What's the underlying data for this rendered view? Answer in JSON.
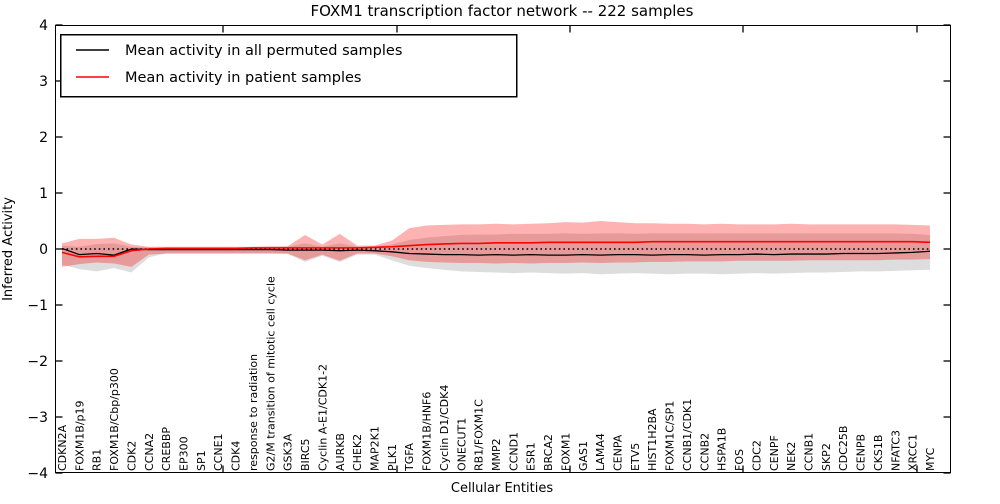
{
  "chart_data": {
    "type": "line",
    "title": "FOXM1 transcription factor network -- 222 samples",
    "xlabel": "Cellular Entities",
    "ylabel": "Inferred Activity",
    "ylim": [
      -4,
      4
    ],
    "yticks": [
      4,
      3,
      2,
      1,
      0,
      -1,
      -2,
      -3,
      -4
    ],
    "grid": false,
    "legend_position": "upper left",
    "legend": [
      {
        "label": "Mean activity in all permuted samples",
        "color": "#000000"
      },
      {
        "label": "Mean activity in patient samples",
        "color": "#ff0000"
      }
    ],
    "zero_reference_line": {
      "value": 0,
      "style": "dotted",
      "color": "#000000"
    },
    "categories": [
      "CDKN2A",
      "FOXM1B/p19",
      "RB1",
      "FOXM1B/Cbp/p300",
      "CDK2",
      "CCNA2",
      "CREBBP",
      "EP300",
      "SP1",
      "CCNE1",
      "CDK4",
      "response to radiation",
      "G2/M transition of mitotic cell cycle",
      "GSK3A",
      "BIRC5",
      "Cyclin A-E1/CDK1-2",
      "AURKB",
      "CHEK2",
      "MAP2K1",
      "PLK1",
      "TGFA",
      "FOXM1B/HNF6",
      "Cyclin D1/CDK4",
      "ONECUT1",
      "RB1/FOXM1C",
      "MMP2",
      "CCND1",
      "ESR1",
      "BRCA2",
      "FOXM1",
      "GAS1",
      "LAMA4",
      "CENPA",
      "ETV5",
      "HIST1H2BA",
      "FOXM1C/SP1",
      "CCNB1/CDK1",
      "CCNB2",
      "HSPA1B",
      "FOS",
      "CDC2",
      "CENPF",
      "NEK2",
      "CCNB1",
      "SKP2",
      "CDC25B",
      "CENPB",
      "CKS1B",
      "NFATC3",
      "XRCC1",
      "MYC"
    ],
    "series": [
      {
        "name": "Mean activity in all permuted samples",
        "color": "#000000",
        "width": 1.3,
        "values": [
          0.01,
          -0.1,
          -0.08,
          -0.11,
          0.0,
          -0.01,
          -0.01,
          -0.01,
          -0.01,
          -0.01,
          -0.01,
          -0.01,
          -0.01,
          -0.02,
          -0.02,
          -0.02,
          -0.03,
          -0.02,
          -0.03,
          -0.05,
          -0.08,
          -0.09,
          -0.1,
          -0.1,
          -0.11,
          -0.1,
          -0.11,
          -0.1,
          -0.11,
          -0.11,
          -0.1,
          -0.11,
          -0.1,
          -0.1,
          -0.11,
          -0.1,
          -0.1,
          -0.11,
          -0.1,
          -0.1,
          -0.09,
          -0.1,
          -0.09,
          -0.09,
          -0.09,
          -0.08,
          -0.08,
          -0.08,
          -0.07,
          -0.06,
          -0.04
        ]
      },
      {
        "name": "Mean activity in patient samples",
        "color": "#ff0000",
        "width": 1.6,
        "values": [
          -0.06,
          -0.14,
          -0.13,
          -0.13,
          -0.03,
          0.0,
          0.01,
          0.01,
          0.01,
          0.01,
          0.01,
          0.02,
          0.02,
          0.02,
          0.02,
          0.02,
          0.02,
          0.02,
          0.03,
          0.04,
          0.06,
          0.08,
          0.09,
          0.1,
          0.1,
          0.11,
          0.11,
          0.11,
          0.12,
          0.12,
          0.12,
          0.12,
          0.12,
          0.12,
          0.13,
          0.13,
          0.13,
          0.13,
          0.13,
          0.13,
          0.13,
          0.13,
          0.13,
          0.13,
          0.13,
          0.13,
          0.13,
          0.13,
          0.13,
          0.13,
          0.12
        ]
      }
    ],
    "bands": [
      {
        "name": "permuted-samples-std-band",
        "color": "#808080",
        "opacity": 0.27,
        "upper": [
          0.06,
          0.04,
          0.09,
          0.1,
          0.04,
          0.03,
          0.03,
          0.03,
          0.03,
          0.03,
          0.03,
          0.03,
          0.03,
          0.04,
          0.1,
          0.04,
          0.1,
          0.04,
          0.04,
          0.08,
          0.16,
          0.2,
          0.23,
          0.25,
          0.26,
          0.26,
          0.27,
          0.27,
          0.27,
          0.28,
          0.27,
          0.28,
          0.28,
          0.27,
          0.28,
          0.28,
          0.28,
          0.28,
          0.28,
          0.28,
          0.28,
          0.28,
          0.28,
          0.28,
          0.28,
          0.28,
          0.28,
          0.28,
          0.28,
          0.27,
          0.25
        ],
        "lower": [
          -0.28,
          -0.36,
          -0.4,
          -0.34,
          -0.42,
          -0.15,
          -0.08,
          -0.08,
          -0.08,
          -0.08,
          -0.08,
          -0.08,
          -0.08,
          -0.09,
          -0.23,
          -0.12,
          -0.23,
          -0.1,
          -0.1,
          -0.2,
          -0.3,
          -0.34,
          -0.37,
          -0.4,
          -0.41,
          -0.42,
          -0.43,
          -0.42,
          -0.43,
          -0.44,
          -0.43,
          -0.45,
          -0.44,
          -0.43,
          -0.44,
          -0.45,
          -0.44,
          -0.44,
          -0.45,
          -0.44,
          -0.43,
          -0.44,
          -0.43,
          -0.42,
          -0.42,
          -0.41,
          -0.4,
          -0.4,
          -0.39,
          -0.38,
          -0.37
        ]
      },
      {
        "name": "patient-samples-std-band",
        "color": "#ff0000",
        "opacity": 0.3,
        "upper": [
          0.1,
          0.18,
          0.18,
          0.2,
          0.08,
          0.04,
          0.04,
          0.04,
          0.04,
          0.04,
          0.04,
          0.04,
          0.05,
          0.05,
          0.25,
          0.08,
          0.27,
          0.06,
          0.06,
          0.15,
          0.37,
          0.42,
          0.43,
          0.44,
          0.44,
          0.45,
          0.44,
          0.45,
          0.46,
          0.48,
          0.47,
          0.5,
          0.48,
          0.46,
          0.46,
          0.45,
          0.45,
          0.44,
          0.45,
          0.44,
          0.44,
          0.44,
          0.45,
          0.44,
          0.44,
          0.44,
          0.44,
          0.44,
          0.44,
          0.43,
          0.42
        ],
        "lower": [
          -0.32,
          -0.27,
          -0.24,
          -0.26,
          -0.32,
          -0.1,
          -0.08,
          -0.08,
          -0.08,
          -0.08,
          -0.08,
          -0.08,
          -0.08,
          -0.08,
          -0.2,
          -0.1,
          -0.21,
          -0.08,
          -0.08,
          -0.13,
          -0.2,
          -0.23,
          -0.24,
          -0.25,
          -0.25,
          -0.26,
          -0.25,
          -0.26,
          -0.25,
          -0.25,
          -0.24,
          -0.25,
          -0.24,
          -0.24,
          -0.23,
          -0.23,
          -0.22,
          -0.22,
          -0.22,
          -0.21,
          -0.21,
          -0.21,
          -0.21,
          -0.2,
          -0.2,
          -0.2,
          -0.2,
          -0.2,
          -0.19,
          -0.19,
          -0.18
        ]
      }
    ]
  }
}
